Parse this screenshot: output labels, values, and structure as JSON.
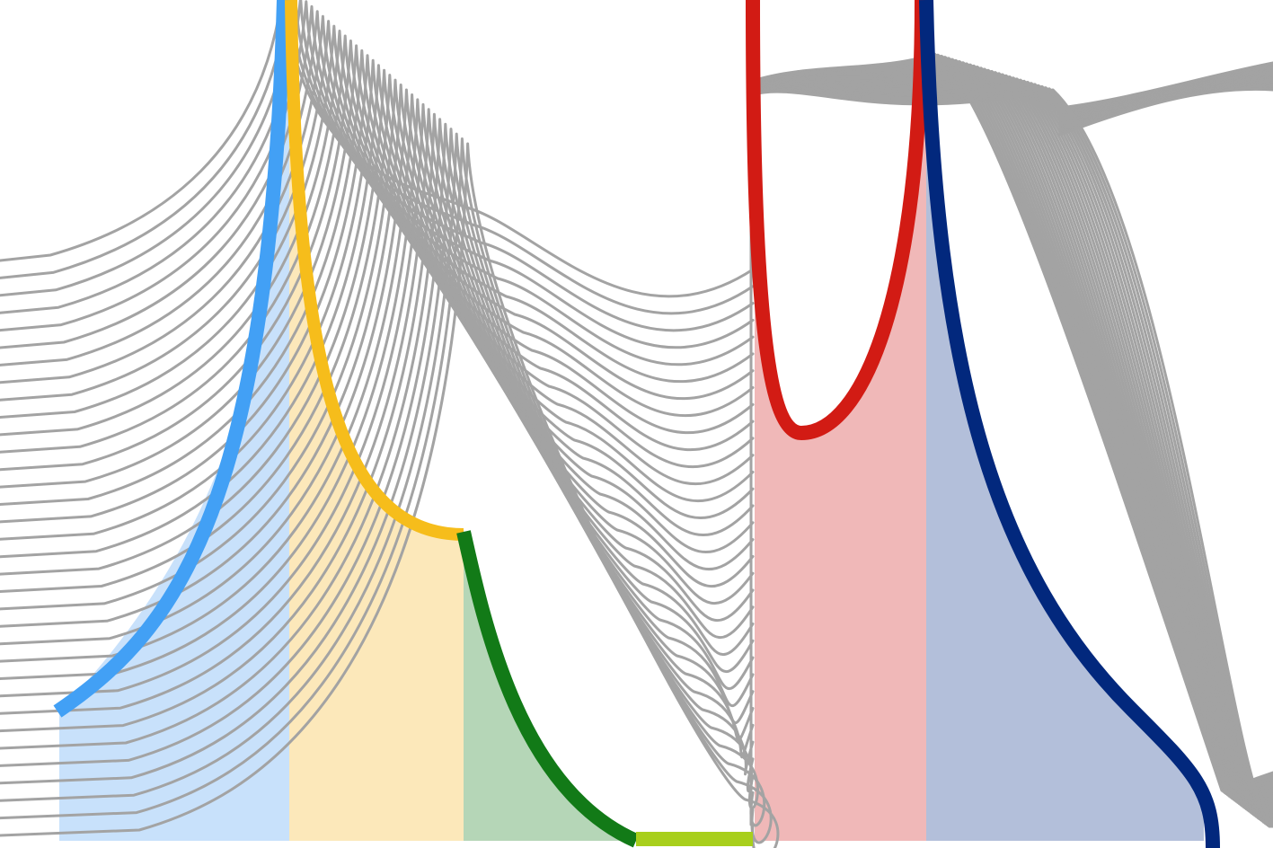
{
  "colors": {
    "background": "#ffffff",
    "gray_lines": "#a3a3a3",
    "blue": "#42a0f5",
    "blue_fill": "#c8e1fb",
    "yellow": "#f6bd1b",
    "yellow_fill": "#fce8ba",
    "green": "#127a17",
    "green_fill": "#b5d6b7",
    "lime": "#a8cf1c",
    "red": "#d21b14",
    "red_fill": "#f0b8b8",
    "navy": "#02287d",
    "navy_fill": "#b3bfda"
  },
  "bands": [
    {
      "name": "blue-band",
      "color": "blue_fill"
    },
    {
      "name": "yellow-band",
      "color": "yellow_fill"
    },
    {
      "name": "green-band",
      "color": "green_fill"
    },
    {
      "name": "red-band",
      "color": "red_fill"
    },
    {
      "name": "navy-band",
      "color": "navy_fill"
    }
  ],
  "highlight_curves": [
    {
      "name": "blue-curve",
      "color": "blue"
    },
    {
      "name": "yellow-curve",
      "color": "yellow"
    },
    {
      "name": "green-curve",
      "color": "green"
    },
    {
      "name": "lime-segment",
      "color": "lime"
    },
    {
      "name": "red-curve",
      "color": "red"
    },
    {
      "name": "navy-curve",
      "color": "navy"
    }
  ]
}
